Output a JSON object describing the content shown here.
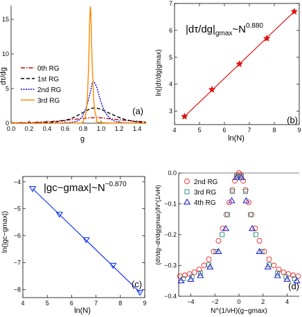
{
  "chart_data": [
    {
      "panel": "(a)",
      "type": "line",
      "xlabel": "g",
      "ylabel": "dτ/dg",
      "xlim": [
        0.0,
        1.5
      ],
      "ylim": [
        0,
        17
      ],
      "x_ticks": [
        "0.0",
        "0.2",
        "0.4",
        "0.6",
        "0.8",
        "1.0",
        "1.2",
        "1.4"
      ],
      "y_ticks": [
        "0",
        "5",
        "10",
        "15"
      ],
      "legend_position": "left-middle",
      "series": [
        {
          "name": "0th RG",
          "color": "#cc0000",
          "style": "dash-dot",
          "x": [
            0,
            0.3,
            0.5,
            0.7,
            0.85,
            0.95,
            1.05,
            1.2,
            1.35,
            1.5
          ],
          "y": [
            0.05,
            0.15,
            0.3,
            0.55,
            0.75,
            0.8,
            0.7,
            0.5,
            0.3,
            0.2
          ]
        },
        {
          "name": "1st RG",
          "color": "#000000",
          "style": "dashed",
          "x": [
            0,
            0.3,
            0.5,
            0.65,
            0.75,
            0.85,
            0.92,
            1.0,
            1.1,
            1.25,
            1.4,
            1.5
          ],
          "y": [
            0.02,
            0.05,
            0.2,
            0.6,
            1.2,
            1.9,
            2.2,
            2.0,
            1.4,
            0.6,
            0.2,
            0.1
          ]
        },
        {
          "name": "2nd RG",
          "color": "#0000cc",
          "style": "dotted",
          "x": [
            0,
            0.5,
            0.7,
            0.78,
            0.84,
            0.88,
            0.91,
            0.95,
            1.0,
            1.05,
            1.12,
            1.2,
            1.3,
            1.5
          ],
          "y": [
            0,
            0.02,
            0.2,
            0.8,
            2.5,
            4.5,
            6.0,
            5.2,
            3.0,
            1.5,
            0.5,
            0.15,
            0.05,
            0
          ]
        },
        {
          "name": "3rd RG",
          "color": "#ff8800",
          "style": "solid",
          "x": [
            0,
            0.7,
            0.8,
            0.84,
            0.86,
            0.88,
            0.9,
            0.92,
            0.95,
            1.0,
            1.5
          ],
          "y": [
            0,
            0.02,
            0.3,
            2.5,
            8.0,
            16.8,
            9.0,
            3.0,
            0.8,
            0.1,
            0
          ]
        }
      ]
    },
    {
      "panel": "(b)",
      "type": "scatter",
      "annotation_main": "|dτ/dg|",
      "annotation_sub": "gmax",
      "annotation_rel": "~N",
      "annotation_exp": "0.880",
      "xlabel": "ln(N)",
      "ylabel": "ln(|dτ/dg|gmax)",
      "xlim": [
        4,
        9
      ],
      "ylim": [
        2.5,
        7
      ],
      "x_ticks": [
        "4",
        "5",
        "6",
        "7",
        "8",
        "9"
      ],
      "y_ticks": [
        "3",
        "4",
        "5",
        "6",
        "7"
      ],
      "marker": "star",
      "color": "#dd1111",
      "x": [
        4.4,
        5.5,
        6.6,
        7.7,
        8.8
      ],
      "y": [
        2.8,
        3.8,
        4.75,
        5.7,
        6.7
      ],
      "fit": {
        "x": [
          4.4,
          8.8
        ],
        "y": [
          2.8,
          6.7
        ]
      }
    },
    {
      "panel": "(c)",
      "type": "scatter",
      "annotation_main": "|gc−gmax|",
      "annotation_rel": "~N",
      "annotation_exp": "−0.870",
      "xlabel": "ln(N)",
      "ylabel": "ln(|gc−gmax|)",
      "xlim": [
        4,
        9
      ],
      "ylim": [
        -8.3,
        -3.8
      ],
      "x_ticks": [
        "4",
        "5",
        "6",
        "7",
        "8",
        "9"
      ],
      "y_ticks": [
        "−4",
        "−5",
        "−6",
        "−7",
        "−8"
      ],
      "marker": "triangle-down",
      "color": "#1133ee",
      "x": [
        4.4,
        5.5,
        6.6,
        7.7,
        8.8
      ],
      "y": [
        -4.25,
        -5.2,
        -6.15,
        -7.1,
        -8.1
      ],
      "fit": {
        "x": [
          4.4,
          8.8
        ],
        "y": [
          -4.25,
          -8.1
        ]
      }
    },
    {
      "panel": "(d)",
      "type": "scatter",
      "xlabel": "N^(1/νH)(g−gmax)",
      "ylabel": "(dτ/dg−dτ/dg|gmax)/N^(1/νH)",
      "xlim": [
        -5,
        5
      ],
      "ylim": [
        -0.4,
        0.0
      ],
      "x_ticks": [
        "−4",
        "−2",
        "0",
        "2",
        "4"
      ],
      "y_ticks": [
        "0.0",
        "−0.1",
        "−0.2",
        "−0.3",
        "−0.4"
      ],
      "legend_position": "top-left",
      "series": [
        {
          "name": "2nd RG",
          "marker": "circle",
          "color": "#ee2222",
          "x": [
            -4.9,
            -4.5,
            -4.1,
            -3.7,
            -3.3,
            -2.9,
            -2.5,
            -2.1,
            -1.7,
            -1.35,
            -1.05,
            -0.8,
            -0.55,
            -0.35,
            -0.15,
            0.0,
            0.15,
            0.35,
            0.55,
            0.8,
            1.05,
            1.35,
            1.7,
            2.1,
            2.5,
            2.9,
            3.3,
            3.7,
            4.1,
            4.5,
            4.9
          ],
          "y": [
            -0.335,
            -0.332,
            -0.328,
            -0.322,
            -0.313,
            -0.3,
            -0.28,
            -0.255,
            -0.22,
            -0.18,
            -0.135,
            -0.095,
            -0.055,
            -0.025,
            -0.006,
            0.0,
            -0.006,
            -0.025,
            -0.055,
            -0.095,
            -0.135,
            -0.18,
            -0.22,
            -0.255,
            -0.28,
            -0.3,
            -0.313,
            -0.322,
            -0.328,
            -0.332,
            -0.335
          ]
        },
        {
          "name": "3rd RG",
          "marker": "square",
          "color": "#228877",
          "x": [
            -4.6,
            -3.9,
            -3.2,
            -2.5,
            -1.9,
            -1.4,
            -0.95,
            -0.55,
            -0.2,
            0.2,
            0.55,
            0.95,
            1.4,
            1.9,
            2.5,
            3.2,
            3.9,
            4.6
          ],
          "y": [
            -0.343,
            -0.337,
            -0.325,
            -0.298,
            -0.255,
            -0.2,
            -0.135,
            -0.06,
            -0.01,
            -0.01,
            -0.06,
            -0.135,
            -0.2,
            -0.255,
            -0.298,
            -0.325,
            -0.337,
            -0.343
          ]
        },
        {
          "name": "4th RG",
          "marker": "triangle-up",
          "color": "#2222cc",
          "x": [
            -4.8,
            -4.0,
            -3.2,
            -2.4,
            -1.7,
            -1.1,
            -0.6,
            -0.2,
            0.2,
            0.6,
            1.1,
            1.7,
            2.4,
            3.2,
            4.0,
            4.8
          ],
          "y": [
            -0.35,
            -0.345,
            -0.333,
            -0.305,
            -0.255,
            -0.18,
            -0.09,
            -0.015,
            -0.015,
            -0.09,
            -0.18,
            -0.255,
            -0.305,
            -0.333,
            -0.345,
            -0.35
          ]
        }
      ]
    }
  ]
}
